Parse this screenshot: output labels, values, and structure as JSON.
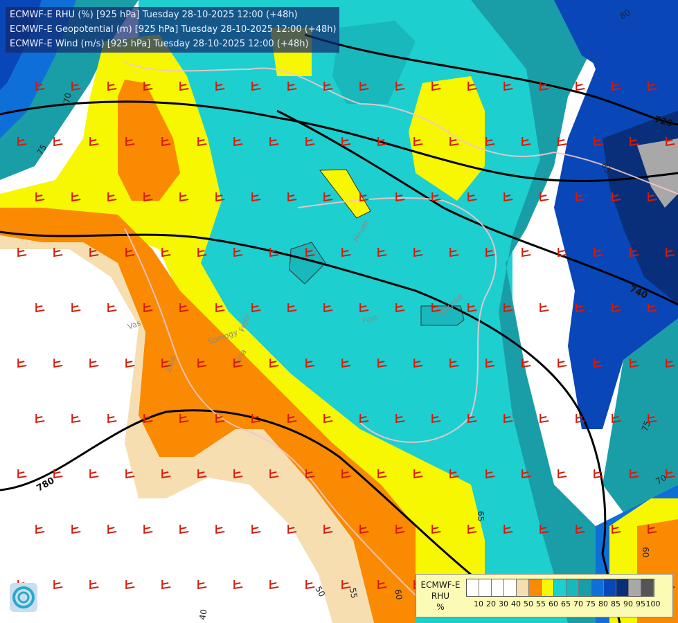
{
  "titles": {
    "line1": "ECMWF-E RHU (%) [925 hPa] Tuesday 28-10-2025 12:00 (+48h)",
    "line2": "ECMWF-E Geopotential (m) [925 hPa] Tuesday 28-10-2025 12:00 (+48h)",
    "line3": "ECMWF-E Wind (m/s) [925 hPa] Tuesday 28-10-2025 12:00 (+48h)"
  },
  "legend": {
    "title": "ECMWF-E",
    "var": "RHU",
    "unit": "%",
    "ticks": [
      "10",
      "20",
      "30",
      "40",
      "50",
      "55",
      "60",
      "65",
      "70",
      "75",
      "80",
      "85",
      "90",
      "95",
      "100"
    ],
    "colors": [
      "#ffffff",
      "#ffffff",
      "#ffffff",
      "#ffffff",
      "#f6deb0",
      "#f98a02",
      "#f6f701",
      "#1ecfcf",
      "#18b8bc",
      "#199ea8",
      "#0e6fd9",
      "#0946b8",
      "#0a2f7a",
      "#a8a8a8",
      "#555555"
    ]
  },
  "geopotential_labels": [
    "720",
    "740",
    "760",
    "780"
  ],
  "rhu_contour_labels": [
    "40",
    "50",
    "55",
    "60",
    "65",
    "70",
    "75",
    "80",
    "85"
  ],
  "place_labels": [
    "Vas",
    "Zala",
    "Somogy",
    "Tolna",
    "Fejér",
    "Pest",
    "Heves",
    "Nógrád"
  ],
  "colors": {
    "geopotential_line": "#000000",
    "wind_barb": "#d41a0a",
    "border": "#f3c6c9"
  }
}
